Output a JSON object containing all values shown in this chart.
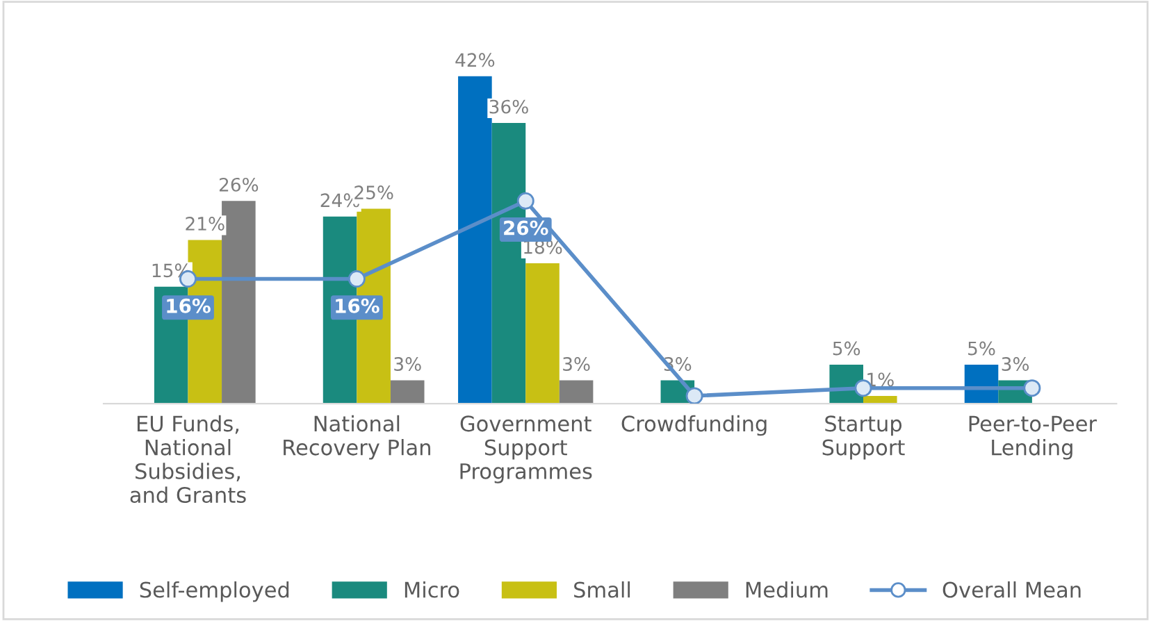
{
  "chart_data": {
    "type": "bar",
    "categories": [
      "EU Funds,\nNational\nSubsidies,\nand Grants",
      "National\nRecovery Plan",
      "Government\nSupport\nProgrammes",
      "Crowdfunding",
      "Startup\nSupport",
      "Peer-to-Peer\nLending"
    ],
    "series": [
      {
        "name": "Self-employed",
        "color": "#0070c0",
        "values": [
          null,
          null,
          42,
          null,
          null,
          5
        ],
        "value_labels": [
          null,
          null,
          "42%",
          null,
          null,
          "5%"
        ]
      },
      {
        "name": "Micro",
        "color": "#1a8a7e",
        "values": [
          15,
          24,
          36,
          3,
          5,
          3
        ],
        "value_labels": [
          "15%",
          "24%",
          "36%",
          "3%",
          "5%",
          "3%"
        ]
      },
      {
        "name": "Small",
        "color": "#c8c014",
        "values": [
          21,
          25,
          18,
          null,
          1,
          null
        ],
        "value_labels": [
          "21%",
          "25%",
          "18%",
          null,
          "1%",
          null
        ]
      },
      {
        "name": "Medium",
        "color": "#7f7f7f",
        "values": [
          26,
          3,
          3,
          null,
          null,
          null
        ],
        "value_labels": [
          "26%",
          "3%",
          "3%",
          null,
          null,
          null
        ]
      },
      {
        "name": "Overall Mean",
        "type": "line",
        "color": "#5b8ec9",
        "marker": "circle",
        "values": [
          16,
          16,
          26,
          1,
          2,
          2
        ],
        "value_labels": [
          "16%",
          "16%",
          "26%",
          null,
          null,
          null
        ]
      }
    ],
    "legend": "bottom",
    "grid": false
  }
}
